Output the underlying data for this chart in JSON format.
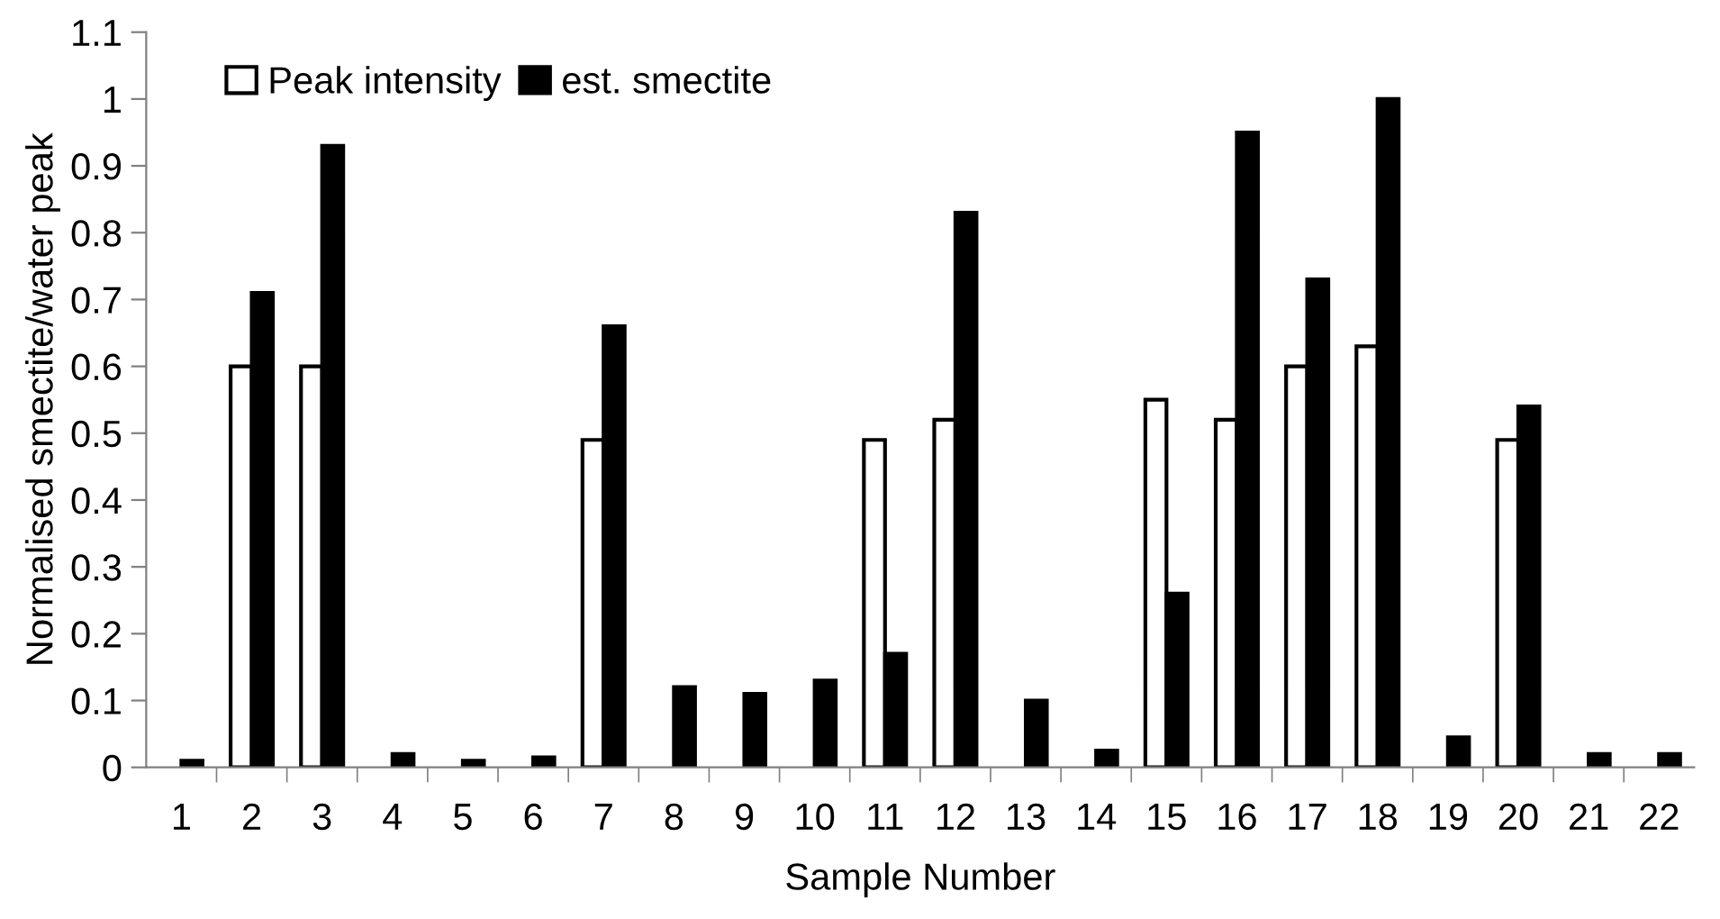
{
  "chart_data": {
    "type": "bar",
    "xlabel": "Sample Number",
    "ylabel": "Normalised smectite/water peak",
    "categories": [
      "1",
      "2",
      "3",
      "4",
      "5",
      "6",
      "7",
      "8",
      "9",
      "10",
      "11",
      "12",
      "13",
      "14",
      "15",
      "16",
      "17",
      "18",
      "19",
      "20",
      "21",
      "22"
    ],
    "series": [
      {
        "name": "Peak intensity",
        "color": "#ffffff",
        "values": [
          null,
          0.6,
          0.6,
          null,
          null,
          null,
          0.49,
          null,
          null,
          null,
          0.49,
          0.52,
          null,
          null,
          0.55,
          0.52,
          0.6,
          0.63,
          null,
          0.49,
          null,
          null
        ]
      },
      {
        "name": "est. smectite",
        "color": "#000000",
        "values": [
          0.01,
          0.71,
          0.93,
          0.02,
          0.01,
          0.015,
          0.66,
          0.12,
          0.11,
          0.13,
          0.17,
          0.83,
          0.1,
          0.025,
          0.26,
          0.95,
          0.73,
          1.0,
          0.045,
          0.54,
          0.02,
          0.02
        ]
      }
    ],
    "ylim": [
      0,
      1.1
    ],
    "yticks": [
      0,
      0.1,
      0.2,
      0.3,
      0.4,
      0.5,
      0.6,
      0.7,
      0.8,
      0.9,
      1,
      1.1
    ],
    "grid": false,
    "legend": "top left"
  }
}
